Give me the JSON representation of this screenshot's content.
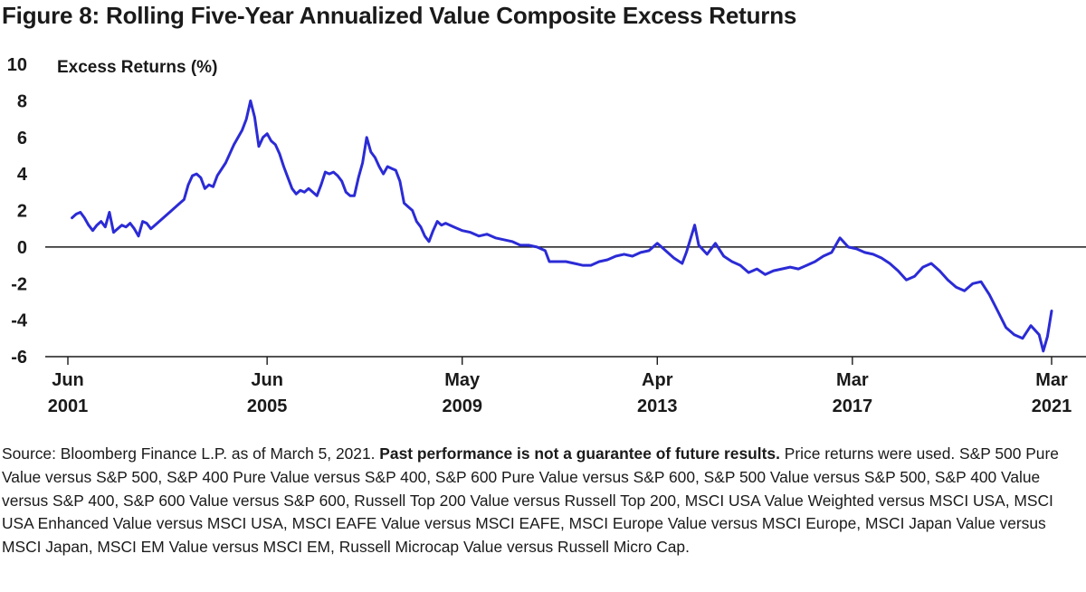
{
  "title": "Figure 8: Rolling Five-Year Annualized Value Composite Excess Returns",
  "source": {
    "part1": "Source: Bloomberg Finance L.P. as of March 5, 2021. ",
    "bold": "Past performance is not a guarantee of future results.",
    "part2": " Price returns were used. S&P 500 Pure Value versus S&P 500, S&P 400 Pure Value versus S&P 400, S&P 600 Pure Value versus S&P 600, S&P 500 Value versus S&P 500, S&P 400 Value versus S&P 400, S&P 600 Value versus S&P 600, Russell Top 200 Value versus Russell Top 200, MSCI USA Value Weighted versus MSCI USA, MSCI USA Enhanced Value versus MSCI USA, MSCI EAFE Value versus MSCI EAFE, MSCI Europe Value versus MSCI Europe, MSCI Japan Value versus MSCI Japan, MSCI EM Value versus MSCI EM, Russell Microcap Value versus Russell Micro Cap."
  },
  "colors": {
    "line": "#2b2bd6",
    "axis": "#1a1a1a"
  },
  "chart_data": {
    "type": "line",
    "title": "Figure 8: Rolling Five-Year Annualized Value Composite Excess Returns",
    "ylabel": "Excess Returns (%)",
    "xlabel": "",
    "ylim": [
      -6,
      10
    ],
    "yticks": [
      -6,
      -4,
      -2,
      0,
      2,
      4,
      6,
      8,
      10
    ],
    "xlim": [
      "2001-06",
      "2021-03"
    ],
    "xticks": [
      {
        "x": "2001-06",
        "month": "Jun",
        "year": "2001"
      },
      {
        "x": "2005-06",
        "month": "Jun",
        "year": "2005"
      },
      {
        "x": "2009-05",
        "month": "May",
        "year": "2009"
      },
      {
        "x": "2013-04",
        "month": "Apr",
        "year": "2013"
      },
      {
        "x": "2017-03",
        "month": "Mar",
        "year": "2017"
      },
      {
        "x": "2021-03",
        "month": "Mar",
        "year": "2021"
      }
    ],
    "grid": false,
    "reference_line": 0,
    "series": [
      {
        "points": [
          [
            "2001-07",
            1.6
          ],
          [
            "2001-08",
            1.8
          ],
          [
            "2001-09",
            1.9
          ],
          [
            "2001-10",
            1.6
          ],
          [
            "2001-11",
            1.2
          ],
          [
            "2001-12",
            0.9
          ],
          [
            "2002-01",
            1.2
          ],
          [
            "2002-02",
            1.4
          ],
          [
            "2002-03",
            1.1
          ],
          [
            "2002-04",
            1.9
          ],
          [
            "2002-05",
            0.8
          ],
          [
            "2002-06",
            1.0
          ],
          [
            "2002-07",
            1.2
          ],
          [
            "2002-08",
            1.1
          ],
          [
            "2002-09",
            1.3
          ],
          [
            "2002-10",
            1.0
          ],
          [
            "2002-11",
            0.6
          ],
          [
            "2002-12",
            1.4
          ],
          [
            "2003-01",
            1.3
          ],
          [
            "2003-02",
            1.0
          ],
          [
            "2003-03",
            1.2
          ],
          [
            "2003-05",
            1.6
          ],
          [
            "2003-07",
            2.0
          ],
          [
            "2003-09",
            2.4
          ],
          [
            "2003-10",
            2.6
          ],
          [
            "2003-11",
            3.4
          ],
          [
            "2003-12",
            3.9
          ],
          [
            "2004-01",
            4.0
          ],
          [
            "2004-02",
            3.8
          ],
          [
            "2004-03",
            3.2
          ],
          [
            "2004-04",
            3.4
          ],
          [
            "2004-05",
            3.3
          ],
          [
            "2004-06",
            3.9
          ],
          [
            "2004-08",
            4.6
          ],
          [
            "2004-10",
            5.6
          ],
          [
            "2004-12",
            6.4
          ],
          [
            "2005-01",
            7.0
          ],
          [
            "2005-02",
            8.0
          ],
          [
            "2005-03",
            7.1
          ],
          [
            "2005-04",
            5.5
          ],
          [
            "2005-05",
            6.0
          ],
          [
            "2005-06",
            6.2
          ],
          [
            "2005-07",
            5.8
          ],
          [
            "2005-08",
            5.6
          ],
          [
            "2005-09",
            5.1
          ],
          [
            "2005-10",
            4.4
          ],
          [
            "2005-11",
            3.8
          ],
          [
            "2005-12",
            3.2
          ],
          [
            "2006-01",
            2.9
          ],
          [
            "2006-02",
            3.1
          ],
          [
            "2006-03",
            3.0
          ],
          [
            "2006-04",
            3.2
          ],
          [
            "2006-05",
            3.0
          ],
          [
            "2006-06",
            2.8
          ],
          [
            "2006-07",
            3.4
          ],
          [
            "2006-08",
            4.1
          ],
          [
            "2006-09",
            4.0
          ],
          [
            "2006-10",
            4.1
          ],
          [
            "2006-11",
            3.9
          ],
          [
            "2006-12",
            3.6
          ],
          [
            "2007-01",
            3.0
          ],
          [
            "2007-02",
            2.8
          ],
          [
            "2007-03",
            2.8
          ],
          [
            "2007-04",
            3.8
          ],
          [
            "2007-05",
            4.6
          ],
          [
            "2007-06",
            6.0
          ],
          [
            "2007-07",
            5.2
          ],
          [
            "2007-08",
            4.9
          ],
          [
            "2007-09",
            4.4
          ],
          [
            "2007-10",
            4.0
          ],
          [
            "2007-11",
            4.4
          ],
          [
            "2007-12",
            4.3
          ],
          [
            "2008-01",
            4.2
          ],
          [
            "2008-02",
            3.6
          ],
          [
            "2008-03",
            2.4
          ],
          [
            "2008-04",
            2.2
          ],
          [
            "2008-05",
            2.0
          ],
          [
            "2008-06",
            1.4
          ],
          [
            "2008-07",
            1.1
          ],
          [
            "2008-08",
            0.6
          ],
          [
            "2008-09",
            0.3
          ],
          [
            "2008-10",
            0.9
          ],
          [
            "2008-11",
            1.4
          ],
          [
            "2008-12",
            1.2
          ],
          [
            "2009-01",
            1.3
          ],
          [
            "2009-03",
            1.1
          ],
          [
            "2009-05",
            0.9
          ],
          [
            "2009-07",
            0.8
          ],
          [
            "2009-09",
            0.6
          ],
          [
            "2009-11",
            0.7
          ],
          [
            "2010-01",
            0.5
          ],
          [
            "2010-03",
            0.4
          ],
          [
            "2010-05",
            0.3
          ],
          [
            "2010-07",
            0.1
          ],
          [
            "2010-09",
            0.1
          ],
          [
            "2010-11",
            0.0
          ],
          [
            "2011-01",
            -0.2
          ],
          [
            "2011-02",
            -0.8
          ],
          [
            "2011-04",
            -0.8
          ],
          [
            "2011-06",
            -0.8
          ],
          [
            "2011-08",
            -0.9
          ],
          [
            "2011-10",
            -1.0
          ],
          [
            "2011-12",
            -1.0
          ],
          [
            "2012-02",
            -0.8
          ],
          [
            "2012-04",
            -0.7
          ],
          [
            "2012-06",
            -0.5
          ],
          [
            "2012-08",
            -0.4
          ],
          [
            "2012-10",
            -0.5
          ],
          [
            "2012-12",
            -0.3
          ],
          [
            "2013-02",
            -0.2
          ],
          [
            "2013-04",
            0.2
          ],
          [
            "2013-06",
            -0.2
          ],
          [
            "2013-08",
            -0.6
          ],
          [
            "2013-10",
            -0.9
          ],
          [
            "2013-11",
            -0.3
          ],
          [
            "2014-01",
            1.2
          ],
          [
            "2014-02",
            0.1
          ],
          [
            "2014-04",
            -0.4
          ],
          [
            "2014-06",
            0.2
          ],
          [
            "2014-08",
            -0.5
          ],
          [
            "2014-10",
            -0.8
          ],
          [
            "2014-12",
            -1.0
          ],
          [
            "2015-02",
            -1.4
          ],
          [
            "2015-04",
            -1.2
          ],
          [
            "2015-06",
            -1.5
          ],
          [
            "2015-08",
            -1.3
          ],
          [
            "2015-10",
            -1.2
          ],
          [
            "2015-12",
            -1.1
          ],
          [
            "2016-02",
            -1.2
          ],
          [
            "2016-04",
            -1.0
          ],
          [
            "2016-06",
            -0.8
          ],
          [
            "2016-08",
            -0.5
          ],
          [
            "2016-10",
            -0.3
          ],
          [
            "2016-12",
            0.5
          ],
          [
            "2017-02",
            0.0
          ],
          [
            "2017-04",
            -0.1
          ],
          [
            "2017-06",
            -0.3
          ],
          [
            "2017-08",
            -0.4
          ],
          [
            "2017-10",
            -0.6
          ],
          [
            "2017-12",
            -0.9
          ],
          [
            "2018-02",
            -1.3
          ],
          [
            "2018-04",
            -1.8
          ],
          [
            "2018-06",
            -1.6
          ],
          [
            "2018-08",
            -1.1
          ],
          [
            "2018-10",
            -0.9
          ],
          [
            "2018-12",
            -1.3
          ],
          [
            "2019-02",
            -1.8
          ],
          [
            "2019-04",
            -2.2
          ],
          [
            "2019-06",
            -2.4
          ],
          [
            "2019-08",
            -2.0
          ],
          [
            "2019-10",
            -1.9
          ],
          [
            "2019-12",
            -2.6
          ],
          [
            "2020-02",
            -3.5
          ],
          [
            "2020-04",
            -4.4
          ],
          [
            "2020-06",
            -4.8
          ],
          [
            "2020-08",
            -5.0
          ],
          [
            "2020-10",
            -4.3
          ],
          [
            "2020-12",
            -4.8
          ],
          [
            "2021-01",
            -5.7
          ],
          [
            "2021-02",
            -4.9
          ],
          [
            "2021-03",
            -3.5
          ]
        ]
      }
    ]
  }
}
